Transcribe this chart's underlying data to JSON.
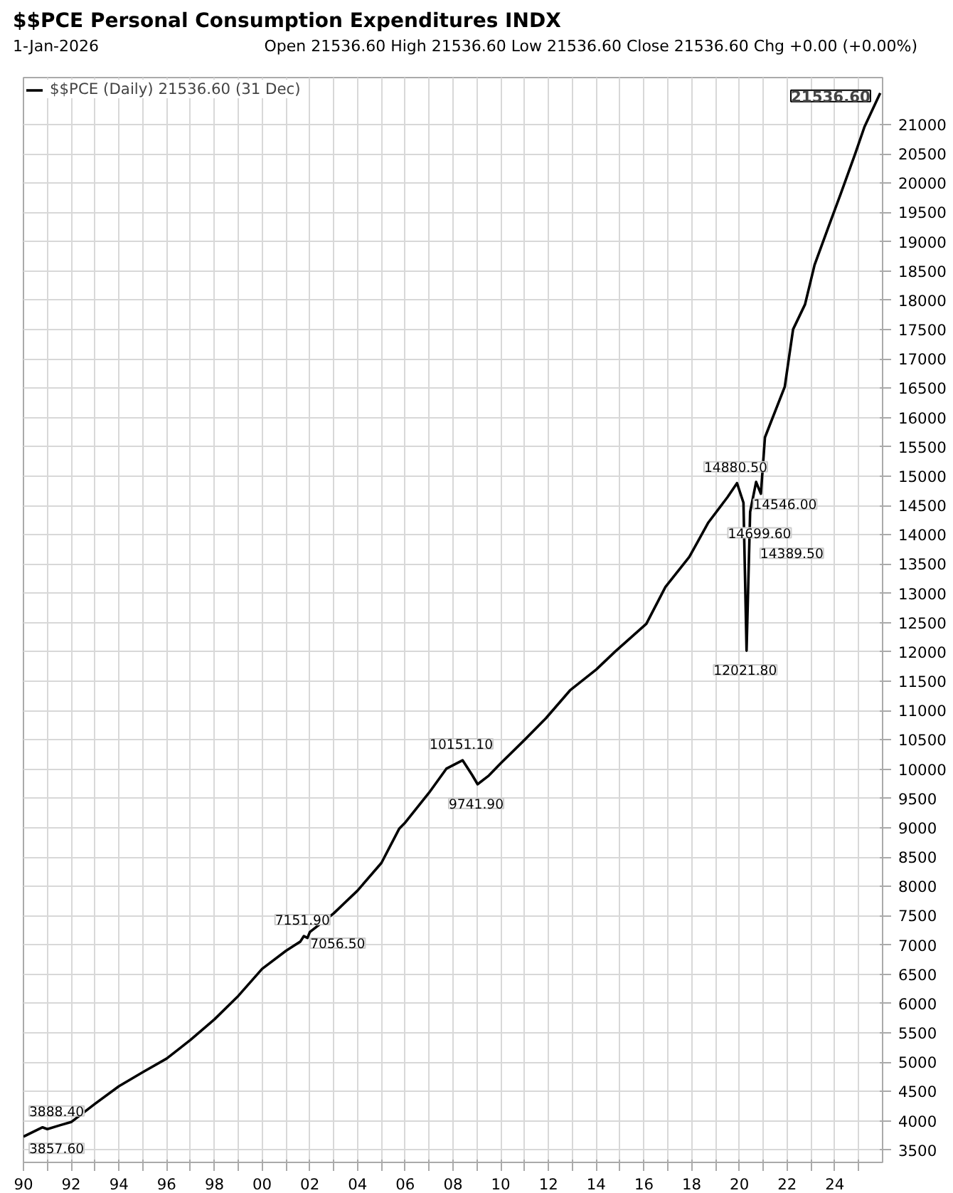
{
  "chart_data": {
    "type": "line",
    "title": "$$PCE Personal Consumption Expenditures INDX",
    "subtitle": "1-Jan-2026",
    "annotations": [
      "Open 21536.60 High 21536.60 Low 21536.60 Close 21536.60 Chg +0.00 (+0.00%)",
      {
        "text": "3888.40",
        "x": 1990.8,
        "y": 3888.4
      },
      {
        "text": "3857.60",
        "x": 1991.0,
        "y": 3857.6
      },
      {
        "text": "7151.90",
        "x": 2001.75,
        "y": 7151.9
      },
      {
        "text": "7056.50",
        "x": 2001.6,
        "y": 7056.5
      },
      {
        "text": "10151.10",
        "x": 2008.4,
        "y": 10151.1
      },
      {
        "text": "9741.90",
        "x": 2009.03,
        "y": 9741.9
      },
      {
        "text": "14880.50",
        "x": 2019.9,
        "y": 14880.5
      },
      {
        "text": "14546.00",
        "x": 2020.17,
        "y": 14546.0
      },
      {
        "text": "14699.60",
        "x": 2020.9,
        "y": 14699.6
      },
      {
        "text": "14389.50",
        "x": 2020.45,
        "y": 14389.5
      },
      {
        "text": "12021.80",
        "x": 2020.3,
        "y": 12021.8
      },
      {
        "text": "21536.60",
        "x": 2025.9,
        "y": 21536.6
      }
    ],
    "series": [
      {
        "name": "$$PCE (Daily) 21536.60 (31 Dec)",
        "color": "#000000",
        "x": [
          1990.0,
          1990.8,
          1991.0,
          1991.5,
          1992.0,
          1993.0,
          1994.0,
          1995.0,
          1996.0,
          1997.0,
          1998.0,
          1999.0,
          2000.0,
          2001.0,
          2001.3,
          2001.6,
          2001.75,
          2001.9,
          2002.0,
          2003.0,
          2004.0,
          2005.0,
          2005.75,
          2006.0,
          2007.0,
          2007.72,
          2008.4,
          2008.8,
          2009.03,
          2009.5,
          2010.0,
          2011.0,
          2011.9,
          2012.9,
          2014.0,
          2014.8,
          2016.1,
          2016.9,
          2017.9,
          2018.7,
          2019.5,
          2019.9,
          2020.17,
          2020.3,
          2020.45,
          2020.7,
          2020.9,
          2021.07,
          2021.9,
          2022.25,
          2022.75,
          2023.15,
          2023.75,
          2024.25,
          2024.84,
          2025.24,
          2025.9
        ],
        "values": [
          3730,
          3888.4,
          3857.6,
          3920,
          3978,
          4290,
          4590,
          4830,
          5061,
          5380,
          5730,
          6130,
          6592,
          6900,
          6980,
          7056.5,
          7151.9,
          7120,
          7221,
          7540,
          7928,
          8400,
          8987,
          9090,
          9600,
          10007,
          10151.1,
          9900,
          9741.9,
          9890,
          10100,
          10500,
          10872,
          11343,
          11700,
          12009,
          12480,
          13109,
          13620,
          14209,
          14640,
          14880.5,
          14546.0,
          12021.8,
          14389.5,
          14900,
          14699.6,
          15660,
          16524,
          17505,
          17930,
          18604,
          19272,
          19821,
          20488,
          20959,
          21536.6
        ]
      }
    ],
    "xlim": [
      1990,
      2026
    ],
    "xticks": [
      {
        "value": 1990,
        "label": "90"
      },
      {
        "value": 1991,
        "label": null
      },
      {
        "value": 1992,
        "label": "92"
      },
      {
        "value": 1993,
        "label": null
      },
      {
        "value": 1994,
        "label": "94"
      },
      {
        "value": 1995,
        "label": null
      },
      {
        "value": 1996,
        "label": "96"
      },
      {
        "value": 1997,
        "label": null
      },
      {
        "value": 1998,
        "label": "98"
      },
      {
        "value": 1999,
        "label": null
      },
      {
        "value": 2000,
        "label": "00"
      },
      {
        "value": 2001,
        "label": null
      },
      {
        "value": 2002,
        "label": "02"
      },
      {
        "value": 2003,
        "label": null
      },
      {
        "value": 2004,
        "label": "04"
      },
      {
        "value": 2005,
        "label": null
      },
      {
        "value": 2006,
        "label": "06"
      },
      {
        "value": 2007,
        "label": null
      },
      {
        "value": 2008,
        "label": "08"
      },
      {
        "value": 2009,
        "label": null
      },
      {
        "value": 2010,
        "label": "10"
      },
      {
        "value": 2011,
        "label": null
      },
      {
        "value": 2012,
        "label": "12"
      },
      {
        "value": 2013,
        "label": null
      },
      {
        "value": 2014,
        "label": "14"
      },
      {
        "value": 2015,
        "label": null
      },
      {
        "value": 2016,
        "label": "16"
      },
      {
        "value": 2017,
        "label": null
      },
      {
        "value": 2018,
        "label": "18"
      },
      {
        "value": 2019,
        "label": null
      },
      {
        "value": 2020,
        "label": "20"
      },
      {
        "value": 2021,
        "label": null
      },
      {
        "value": 2022,
        "label": "22"
      },
      {
        "value": 2023,
        "label": null
      },
      {
        "value": 2024,
        "label": "24"
      },
      {
        "value": 2025,
        "label": null
      }
    ],
    "ylim": [
      3290,
      21800
    ],
    "yticks": [
      3500,
      4000,
      4500,
      5000,
      5500,
      6000,
      6500,
      7000,
      7500,
      8000,
      8500,
      9000,
      9500,
      10000,
      10500,
      11000,
      11500,
      12000,
      12500,
      13000,
      13500,
      14000,
      14500,
      15000,
      15500,
      16000,
      16500,
      17000,
      17500,
      18000,
      18500,
      19000,
      19500,
      20000,
      20500,
      21000
    ],
    "grid": true,
    "legend": "top left",
    "line_style": "solid",
    "marker": "none"
  }
}
